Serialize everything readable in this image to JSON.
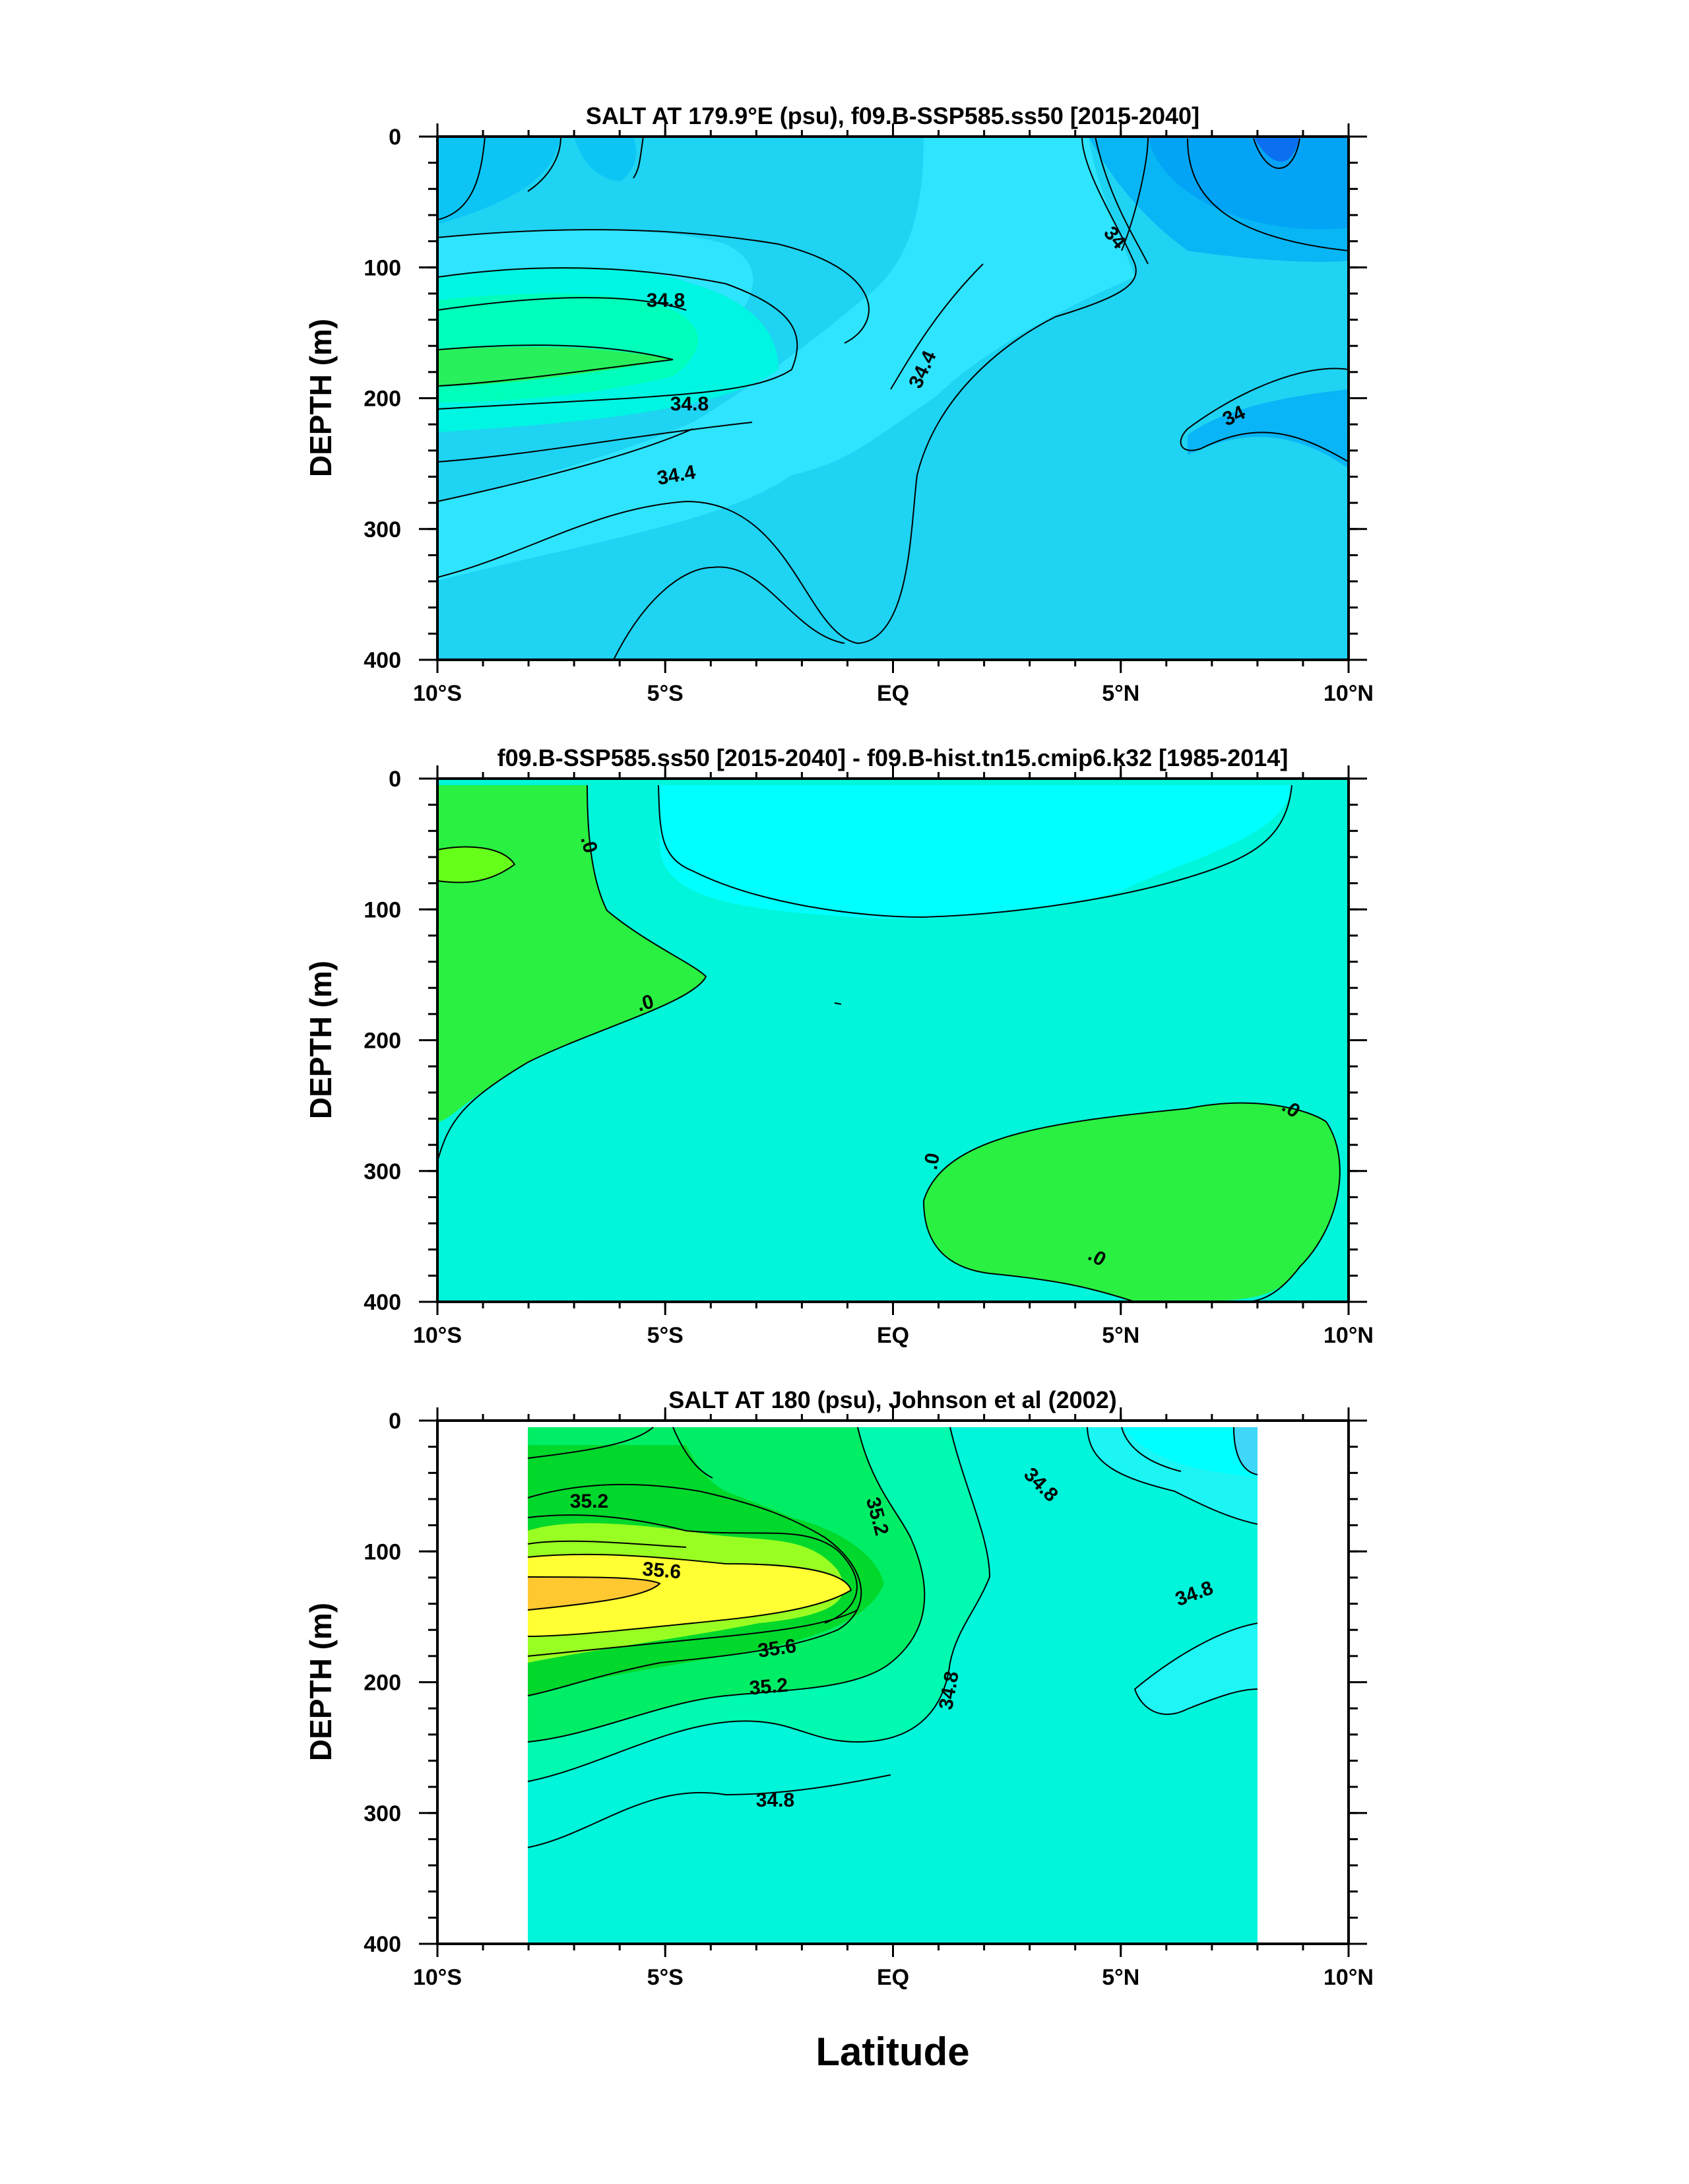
{
  "chart_data": [
    {
      "type": "heatmap",
      "title": "SALT AT 179.9°E (psu), f09.B-SSP585.ss50 [2015-2040]",
      "ylabel": "DEPTH (m)",
      "xlabel": "",
      "x_ticks": [
        {
          "value": -10,
          "label": "10°S"
        },
        {
          "value": -5,
          "label": "5°S"
        },
        {
          "value": 0,
          "label": "EQ"
        },
        {
          "value": 5,
          "label": "5°N"
        },
        {
          "value": 10,
          "label": "10°N"
        }
      ],
      "y_ticks": [
        0,
        100,
        200,
        300,
        400
      ],
      "xlim": [
        -10,
        10
      ],
      "ylim": [
        400,
        0
      ],
      "contour_labels": [
        {
          "text": "34.8",
          "x": -5.0,
          "y": 115
        },
        {
          "text": "34.8",
          "x": -4.5,
          "y": 195
        },
        {
          "text": "34.4",
          "x": -4.7,
          "y": 247
        },
        {
          "text": "34.4",
          "x": 0.6,
          "y": 170
        },
        {
          "text": "34",
          "x": 4.8,
          "y": 60
        },
        {
          "text": "34",
          "x": 7.4,
          "y": 195
        }
      ]
    },
    {
      "type": "heatmap",
      "title": "f09.B-SSP585.ss50 [2015-2040] - f09.B-hist.tn15.cmip6.k32 [1985-2014]",
      "ylabel": "DEPTH (m)",
      "xlabel": "",
      "x_ticks": [
        {
          "value": -10,
          "label": "10°S"
        },
        {
          "value": -5,
          "label": "5°S"
        },
        {
          "value": 0,
          "label": "EQ"
        },
        {
          "value": 5,
          "label": "5°N"
        },
        {
          "value": 10,
          "label": "10°N"
        }
      ],
      "y_ticks": [
        0,
        100,
        200,
        300,
        400
      ],
      "xlim": [
        -10,
        10
      ],
      "ylim": [
        400,
        0
      ],
      "contour_labels": [
        {
          "text": ".0",
          "x": -6.6,
          "y": 45
        },
        {
          "text": ".0",
          "x": -4.5,
          "y": 175
        },
        {
          "text": ".0",
          "x": 0.8,
          "y": 295
        },
        {
          "text": ".0",
          "x": 4.5,
          "y": 373
        },
        {
          "text": ".0",
          "x": 8.8,
          "y": 258
        }
      ]
    },
    {
      "type": "heatmap",
      "title": "SALT AT 180 (psu), Johnson et al (2002)",
      "ylabel": "DEPTH (m)",
      "xlabel": "Latitude",
      "x_ticks": [
        {
          "value": -10,
          "label": "10°S"
        },
        {
          "value": -5,
          "label": "5°S"
        },
        {
          "value": 0,
          "label": "EQ"
        },
        {
          "value": 5,
          "label": "5°N"
        },
        {
          "value": 10,
          "label": "10°N"
        }
      ],
      "y_ticks": [
        0,
        100,
        200,
        300,
        400
      ],
      "xlim": [
        -10,
        10
      ],
      "ylim": [
        400,
        0
      ],
      "contour_labels": [
        {
          "text": "35.2",
          "x": -6.7,
          "y": 67
        },
        {
          "text": "35.6",
          "x": -5.1,
          "y": 125
        },
        {
          "text": "35.6",
          "x": -2.9,
          "y": 180
        },
        {
          "text": "35.2",
          "x": -3.7,
          "y": 212
        },
        {
          "text": "35.2",
          "x": -0.4,
          "y": 80
        },
        {
          "text": "34.8",
          "x": 1.3,
          "y": 218
        },
        {
          "text": "34.8",
          "x": -2.8,
          "y": 298
        },
        {
          "text": "34.8",
          "x": 3.1,
          "y": 55
        },
        {
          "text": "34.8",
          "x": 6.5,
          "y": 135
        }
      ]
    }
  ]
}
